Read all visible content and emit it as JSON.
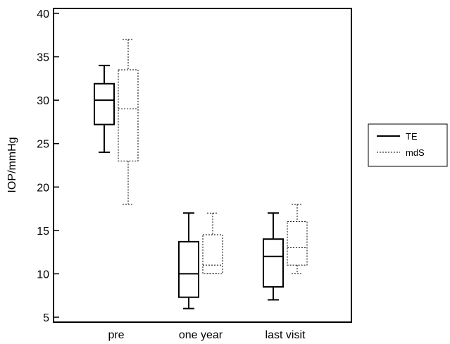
{
  "chart_data": {
    "type": "box",
    "ylabel": "IOP/mmHg",
    "ylim": [
      5,
      40
    ],
    "yticks": [
      5,
      10,
      15,
      20,
      25,
      30,
      35,
      40
    ],
    "categories": [
      "pre",
      "one year",
      "last visit"
    ],
    "legend_position": "right",
    "series": [
      {
        "name": "TE",
        "line_style": "solid",
        "color": "#000000",
        "boxes": [
          {
            "min": 24,
            "q1": 27.2,
            "median": 30,
            "q3": 31.9,
            "max": 34
          },
          {
            "min": 6,
            "q1": 7.3,
            "median": 10,
            "q3": 13.7,
            "max": 17
          },
          {
            "min": 7,
            "q1": 8.5,
            "median": 12,
            "q3": 14,
            "max": 17
          }
        ]
      },
      {
        "name": "mdS",
        "line_style": "dotted",
        "color": "#000000",
        "boxes": [
          {
            "min": 18,
            "q1": 23,
            "median": 29,
            "q3": 33.5,
            "max": 37
          },
          {
            "min": 10,
            "q1": 10,
            "median": 11,
            "q3": 14.5,
            "max": 17
          },
          {
            "min": 10,
            "q1": 11,
            "median": 13,
            "q3": 16,
            "max": 18
          }
        ]
      }
    ]
  }
}
